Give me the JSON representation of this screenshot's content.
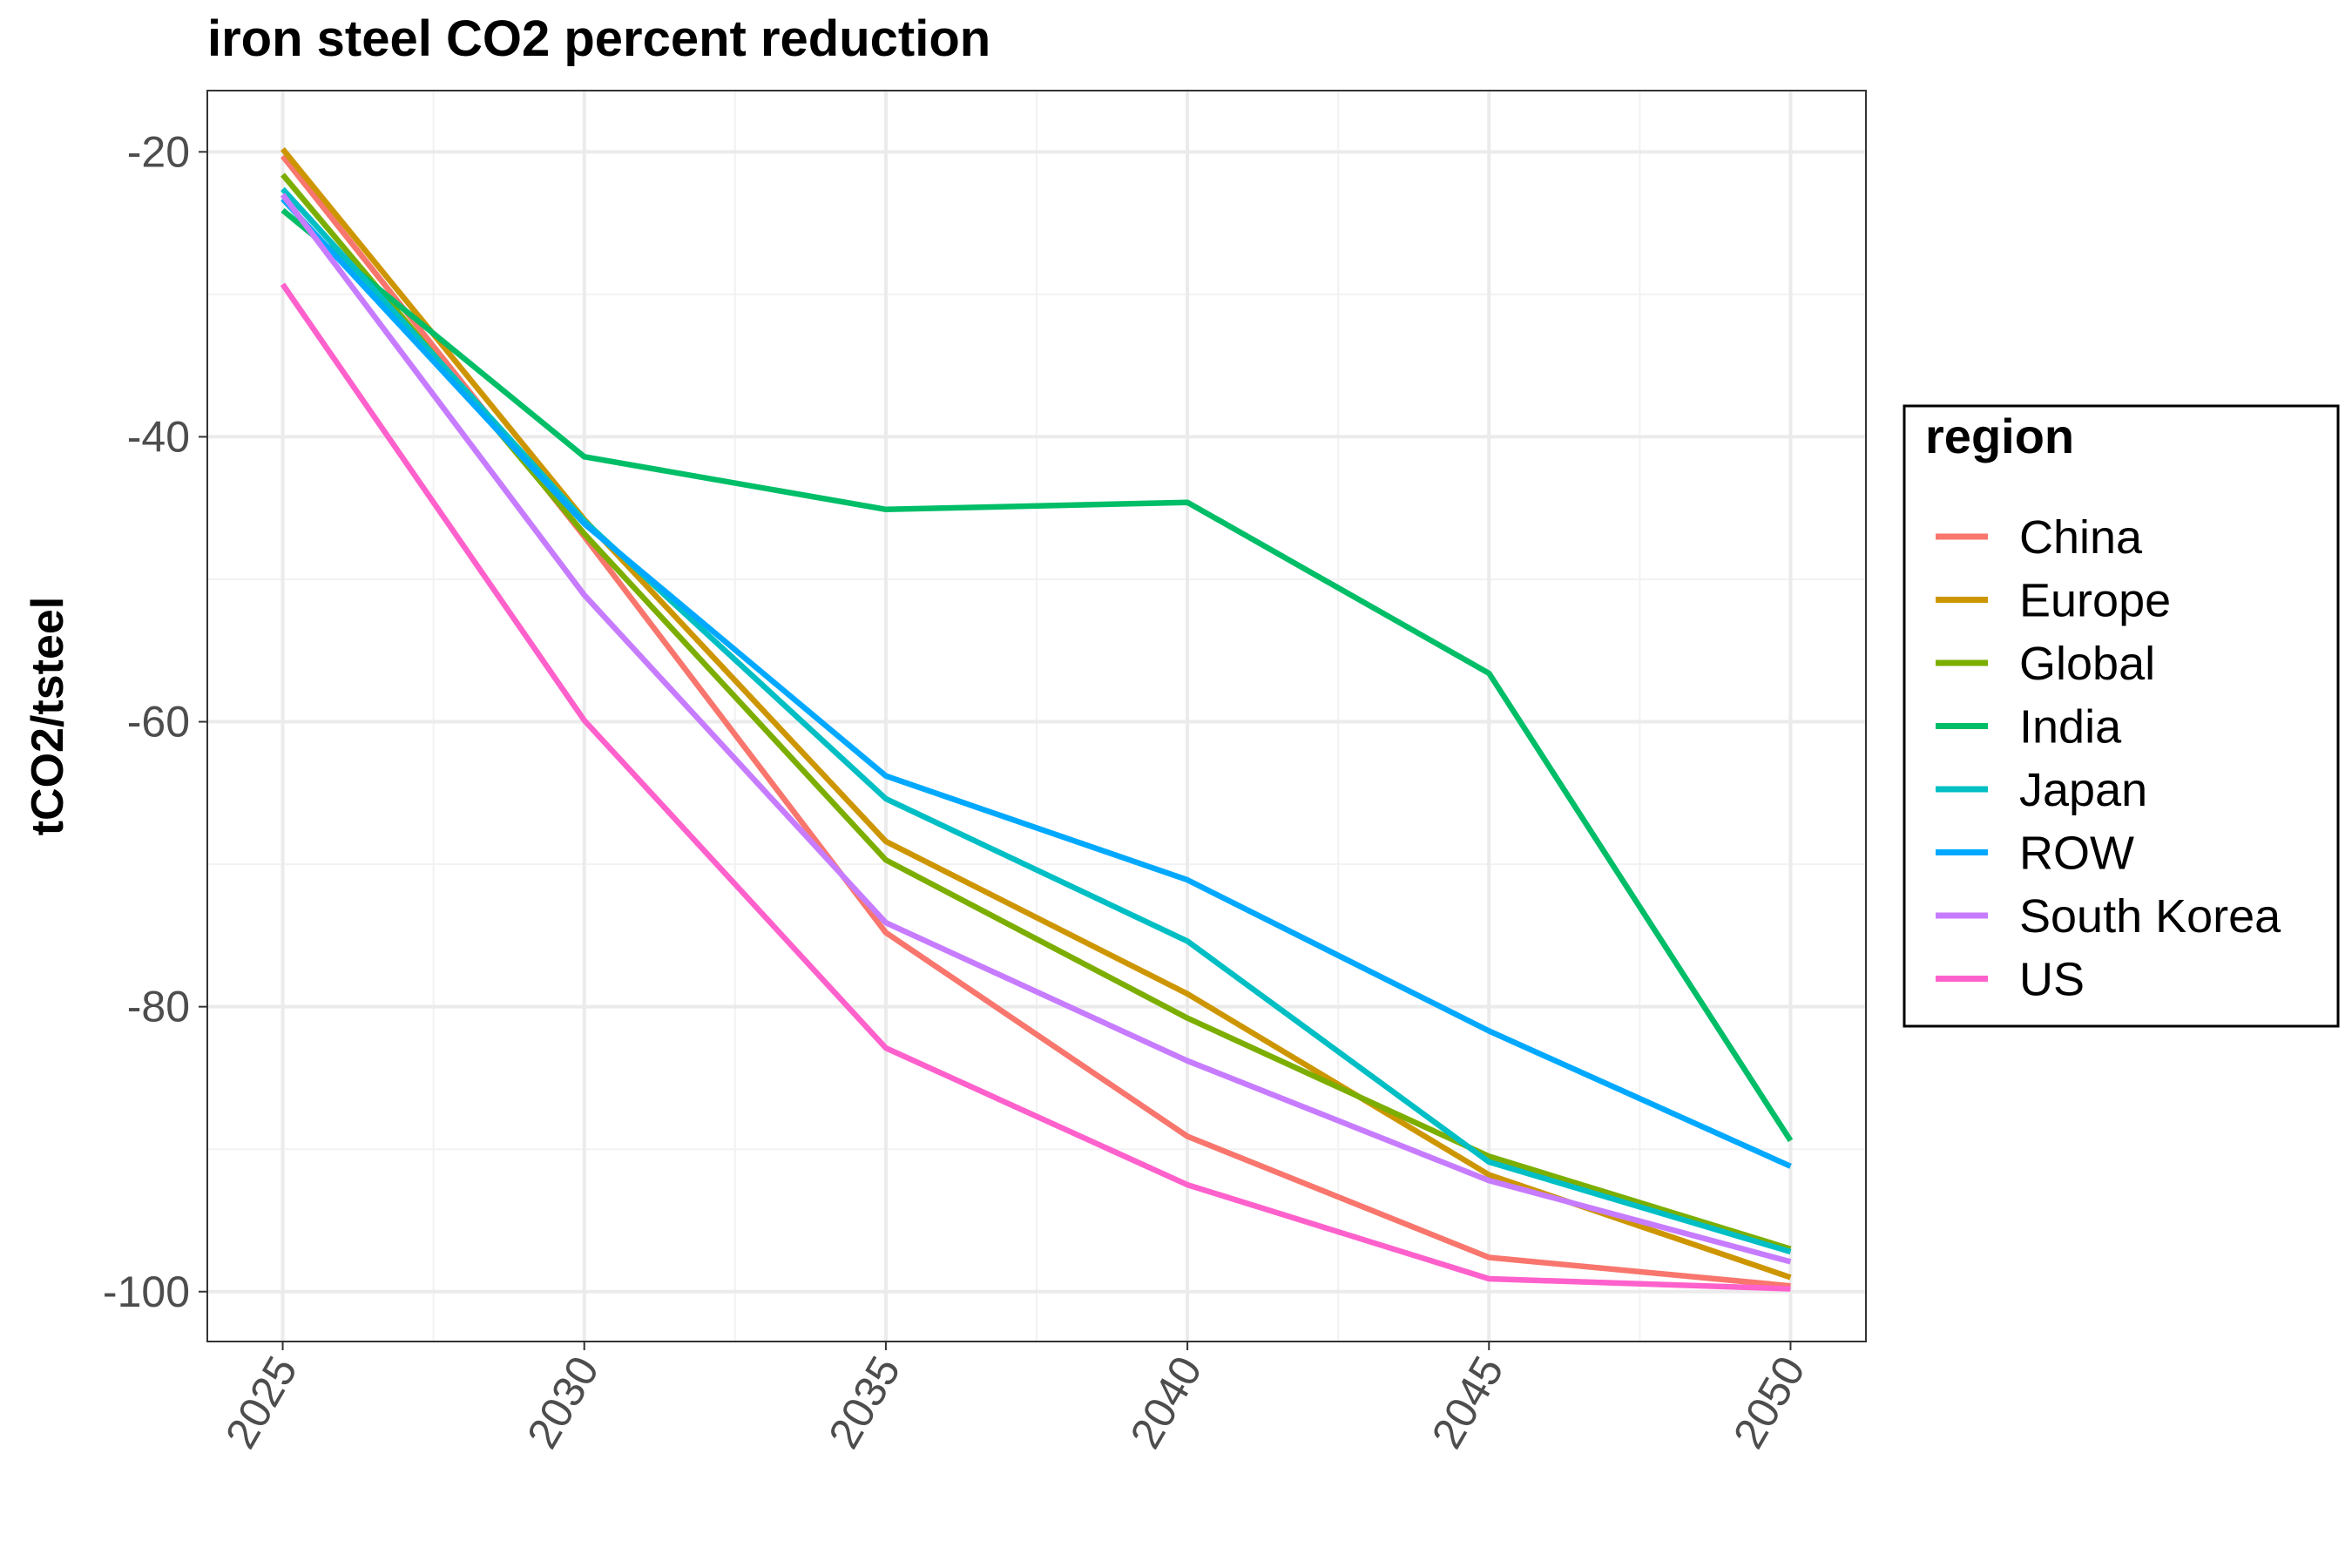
{
  "chart_data": {
    "type": "line",
    "title": "iron steel CO2 percent reduction",
    "xlabel": "",
    "ylabel": "tCO2/tsteel",
    "x": [
      2025,
      2030,
      2035,
      2040,
      2045,
      2050
    ],
    "x_ticks": [
      "2025",
      "2030",
      "2035",
      "2040",
      "2045",
      "2050"
    ],
    "y_ticks": [
      "-20",
      "-40",
      "-60",
      "-80",
      "-100"
    ],
    "xlim": [
      2023.75,
      2051.25
    ],
    "ylim": [
      -103.5,
      -15.7
    ],
    "grid": true,
    "legend": {
      "title": "region",
      "placement": "right"
    },
    "series": [
      {
        "name": "China",
        "color": "#F8766D",
        "values": [
          -20.3,
          -47.0,
          -74.8,
          -89.1,
          -97.6,
          -99.6
        ]
      },
      {
        "name": "Europe",
        "color": "#CD9600",
        "values": [
          -19.8,
          -45.8,
          -68.4,
          -79.1,
          -91.8,
          -99.0
        ]
      },
      {
        "name": "Global",
        "color": "#7CAE00",
        "values": [
          -21.6,
          -46.8,
          -69.7,
          -80.8,
          -90.5,
          -97.0
        ]
      },
      {
        "name": "India",
        "color": "#00BE67",
        "values": [
          -24.1,
          -41.4,
          -45.1,
          -44.6,
          -56.6,
          -89.4
        ]
      },
      {
        "name": "Japan",
        "color": "#00BFC4",
        "values": [
          -22.6,
          -45.9,
          -65.4,
          -75.4,
          -90.9,
          -97.2
        ]
      },
      {
        "name": "ROW",
        "color": "#00A9FF",
        "values": [
          -23.3,
          -46.1,
          -63.8,
          -71.1,
          -81.7,
          -91.2
        ]
      },
      {
        "name": "South Korea",
        "color": "#C77CFF",
        "values": [
          -23.0,
          -51.1,
          -74.1,
          -83.8,
          -92.2,
          -97.9
        ]
      },
      {
        "name": "US",
        "color": "#FF61CC",
        "values": [
          -29.3,
          -59.9,
          -82.9,
          -92.5,
          -99.1,
          -99.8
        ]
      }
    ]
  }
}
